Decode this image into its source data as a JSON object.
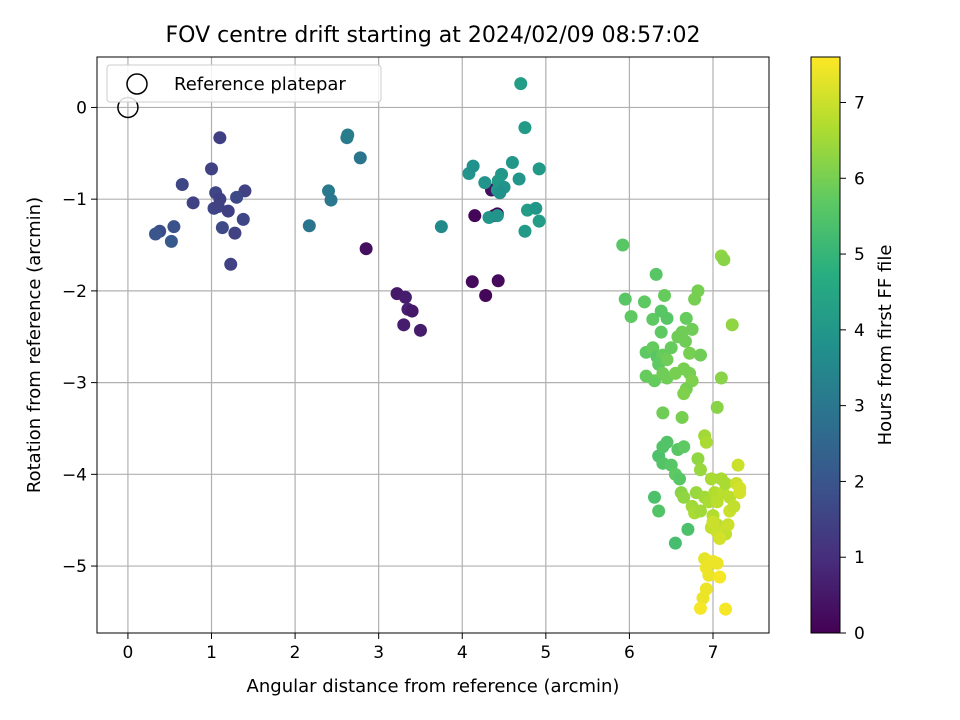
{
  "chart_data": {
    "type": "scatter",
    "title": "FOV centre drift starting at 2024/02/09 08:57:02",
    "xlabel": "Angular distance from reference (arcmin)",
    "ylabel": "Rotation from reference (arcmin)",
    "colorbar_label": "Hours from first FF file",
    "xlim": [
      -0.37,
      7.67
    ],
    "ylim": [
      -5.73,
      0.55
    ],
    "x_ticks": [
      0,
      1,
      2,
      3,
      4,
      5,
      6,
      7
    ],
    "y_ticks": [
      0,
      -1,
      -2,
      -3,
      -4,
      -5
    ],
    "x_tick_labels": [
      "0",
      "1",
      "2",
      "3",
      "4",
      "5",
      "6",
      "7"
    ],
    "y_tick_labels": [
      "0",
      "−1",
      "−2",
      "−3",
      "−4",
      "−5"
    ],
    "colorbar_range": [
      0,
      7.6
    ],
    "colorbar_ticks": [
      0,
      1,
      2,
      3,
      4,
      5,
      6,
      7
    ],
    "colorbar_tick_labels": [
      "0",
      "1",
      "2",
      "3",
      "4",
      "5",
      "6",
      "7"
    ],
    "colormap": "viridis",
    "grid": true,
    "legend": {
      "position": "top-left",
      "entries": [
        "Reference platepar"
      ]
    },
    "reference_point": {
      "x": 0,
      "y": 0
    },
    "points": [
      [
        4.15,
        -1.18,
        0.1
      ],
      [
        4.38,
        -1.18,
        0.2
      ],
      [
        4.42,
        -1.16,
        0.1
      ],
      [
        4.12,
        -1.9,
        0.2
      ],
      [
        4.28,
        -2.05,
        0.1
      ],
      [
        4.43,
        -1.89,
        0.2
      ],
      [
        4.35,
        -0.9,
        0.3
      ],
      [
        2.85,
        -1.54,
        0.3
      ],
      [
        3.22,
        -2.03,
        0.5
      ],
      [
        3.32,
        -2.07,
        0.6
      ],
      [
        3.3,
        -2.37,
        0.6
      ],
      [
        3.35,
        -2.2,
        0.7
      ],
      [
        3.4,
        -2.22,
        0.5
      ],
      [
        3.5,
        -2.43,
        0.6
      ],
      [
        1.1,
        -0.33,
        1.4
      ],
      [
        1.0,
        -0.67,
        1.5
      ],
      [
        0.65,
        -0.84,
        1.6
      ],
      [
        0.78,
        -1.04,
        1.5
      ],
      [
        1.05,
        -0.93,
        1.6
      ],
      [
        1.1,
        -1.0,
        1.4
      ],
      [
        1.4,
        -0.91,
        1.5
      ],
      [
        1.3,
        -0.98,
        1.7
      ],
      [
        1.03,
        -1.1,
        1.6
      ],
      [
        1.08,
        -1.08,
        1.5
      ],
      [
        1.2,
        -1.13,
        1.4
      ],
      [
        1.38,
        -1.22,
        1.6
      ],
      [
        1.13,
        -1.31,
        1.7
      ],
      [
        1.28,
        -1.37,
        1.5
      ],
      [
        0.55,
        -1.3,
        1.9
      ],
      [
        0.38,
        -1.35,
        1.8
      ],
      [
        0.33,
        -1.38,
        2.0
      ],
      [
        0.52,
        -1.46,
        2.1
      ],
      [
        1.23,
        -1.71,
        1.5
      ],
      [
        2.62,
        -0.33,
        3.1
      ],
      [
        2.63,
        -0.3,
        3.2
      ],
      [
        2.78,
        -0.55,
        2.9
      ],
      [
        2.4,
        -0.91,
        3.1
      ],
      [
        2.43,
        -1.01,
        3.0
      ],
      [
        2.17,
        -1.29,
        2.9
      ],
      [
        3.75,
        -1.3,
        3.6
      ],
      [
        4.08,
        -0.72,
        3.9
      ],
      [
        4.13,
        -0.64,
        3.8
      ],
      [
        4.27,
        -0.82,
        3.9
      ],
      [
        4.42,
        -0.9,
        4.0
      ],
      [
        4.47,
        -0.73,
        4.0
      ],
      [
        4.43,
        -0.8,
        4.1
      ],
      [
        4.5,
        -0.87,
        3.9
      ],
      [
        4.45,
        -0.93,
        3.8
      ],
      [
        4.6,
        -0.6,
        4.0
      ],
      [
        4.68,
        -0.78,
        4.0
      ],
      [
        4.7,
        0.26,
        4.2
      ],
      [
        4.75,
        -0.22,
        4.1
      ],
      [
        4.92,
        -0.67,
        4.1
      ],
      [
        4.78,
        -1.12,
        4.2
      ],
      [
        4.88,
        -1.1,
        4.0
      ],
      [
        4.92,
        -1.24,
        4.2
      ],
      [
        4.75,
        -1.35,
        4.1
      ],
      [
        4.32,
        -1.2,
        4.0
      ],
      [
        4.42,
        -1.18,
        3.9
      ],
      [
        5.92,
        -1.5,
        5.6
      ],
      [
        5.95,
        -2.09,
        5.6
      ],
      [
        6.02,
        -2.28,
        5.7
      ],
      [
        6.18,
        -2.12,
        5.7
      ],
      [
        6.32,
        -1.82,
        5.6
      ],
      [
        6.28,
        -2.31,
        5.7
      ],
      [
        6.38,
        -2.22,
        5.6
      ],
      [
        6.42,
        -2.05,
        5.8
      ],
      [
        6.45,
        -2.3,
        5.6
      ],
      [
        6.38,
        -2.45,
        5.7
      ],
      [
        6.2,
        -2.67,
        5.7
      ],
      [
        6.28,
        -2.62,
        5.8
      ],
      [
        6.33,
        -2.72,
        5.6
      ],
      [
        6.4,
        -2.7,
        5.8
      ],
      [
        6.35,
        -2.8,
        5.7
      ],
      [
        6.45,
        -2.75,
        5.9
      ],
      [
        6.5,
        -2.62,
        5.8
      ],
      [
        6.58,
        -2.5,
        5.9
      ],
      [
        6.63,
        -2.45,
        5.9
      ],
      [
        6.68,
        -2.3,
        5.8
      ],
      [
        6.75,
        -2.42,
        5.9
      ],
      [
        6.78,
        -2.09,
        6.0
      ],
      [
        6.82,
        -2.0,
        6.0
      ],
      [
        6.67,
        -2.55,
        5.9
      ],
      [
        6.72,
        -2.68,
        6.0
      ],
      [
        6.85,
        -2.7,
        5.9
      ],
      [
        6.2,
        -2.93,
        5.8
      ],
      [
        6.3,
        -2.98,
        5.8
      ],
      [
        6.4,
        -2.9,
        5.9
      ],
      [
        6.45,
        -2.95,
        5.9
      ],
      [
        6.55,
        -2.9,
        6.0
      ],
      [
        6.65,
        -2.85,
        6.0
      ],
      [
        6.72,
        -2.9,
        6.0
      ],
      [
        6.75,
        -2.98,
        6.1
      ],
      [
        6.68,
        -3.07,
        6.0
      ],
      [
        6.65,
        -3.12,
        6.1
      ],
      [
        6.4,
        -3.33,
        5.9
      ],
      [
        6.63,
        -3.38,
        6.0
      ],
      [
        7.1,
        -2.95,
        6.2
      ],
      [
        7.05,
        -3.27,
        6.2
      ],
      [
        7.1,
        -1.62,
        6.3
      ],
      [
        7.13,
        -1.66,
        6.2
      ],
      [
        7.23,
        -2.37,
        6.3
      ],
      [
        6.35,
        -3.8,
        5.4
      ],
      [
        6.4,
        -3.7,
        5.5
      ],
      [
        6.45,
        -3.65,
        5.5
      ],
      [
        6.4,
        -3.88,
        5.5
      ],
      [
        6.5,
        -3.9,
        5.6
      ],
      [
        6.55,
        -4.0,
        5.7
      ],
      [
        6.6,
        -4.05,
        5.6
      ],
      [
        6.58,
        -3.73,
        5.6
      ],
      [
        6.65,
        -3.7,
        5.7
      ],
      [
        6.3,
        -4.25,
        5.4
      ],
      [
        6.35,
        -4.4,
        5.5
      ],
      [
        6.55,
        -4.75,
        5.3
      ],
      [
        6.7,
        -4.6,
        5.4
      ],
      [
        6.62,
        -4.2,
        6.2
      ],
      [
        6.65,
        -4.25,
        6.3
      ],
      [
        6.75,
        -4.35,
        6.5
      ],
      [
        6.78,
        -4.42,
        6.6
      ],
      [
        6.85,
        -4.4,
        6.5
      ],
      [
        6.8,
        -4.2,
        6.4
      ],
      [
        6.9,
        -4.25,
        6.5
      ],
      [
        6.95,
        -4.3,
        6.6
      ],
      [
        6.82,
        -3.83,
        6.3
      ],
      [
        6.85,
        -3.95,
        6.4
      ],
      [
        6.9,
        -3.58,
        6.5
      ],
      [
        6.92,
        -3.65,
        6.6
      ],
      [
        6.98,
        -4.05,
        6.6
      ],
      [
        7.02,
        -4.2,
        6.7
      ],
      [
        7.05,
        -4.3,
        6.8
      ],
      [
        7.0,
        -4.45,
        6.7
      ],
      [
        7.05,
        -4.55,
        6.8
      ],
      [
        7.1,
        -4.62,
        6.9
      ],
      [
        7.15,
        -4.65,
        6.9
      ],
      [
        7.2,
        -4.4,
        7.0
      ],
      [
        7.18,
        -4.55,
        7.0
      ],
      [
        7.12,
        -4.2,
        6.8
      ],
      [
        7.1,
        -4.05,
        6.6
      ],
      [
        7.15,
        -4.1,
        6.6
      ],
      [
        7.2,
        -4.25,
        6.8
      ],
      [
        7.25,
        -4.35,
        6.9
      ],
      [
        7.28,
        -4.1,
        7.0
      ],
      [
        7.3,
        -3.9,
        7.0
      ],
      [
        7.32,
        -4.15,
        7.1
      ],
      [
        7.32,
        -4.2,
        7.1
      ],
      [
        6.98,
        -4.58,
        6.9
      ],
      [
        7.0,
        -4.52,
        7.0
      ],
      [
        7.05,
        -4.63,
        7.0
      ],
      [
        7.08,
        -4.7,
        7.1
      ],
      [
        6.9,
        -4.92,
        7.3
      ],
      [
        6.92,
        -5.02,
        7.4
      ],
      [
        6.95,
        -5.1,
        7.4
      ],
      [
        7.0,
        -4.95,
        7.4
      ],
      [
        7.05,
        -4.97,
        7.4
      ],
      [
        7.08,
        -5.12,
        7.5
      ],
      [
        6.88,
        -5.35,
        7.4
      ],
      [
        6.92,
        -5.25,
        7.4
      ],
      [
        6.85,
        -5.46,
        7.5
      ],
      [
        7.15,
        -5.47,
        7.5
      ]
    ]
  }
}
